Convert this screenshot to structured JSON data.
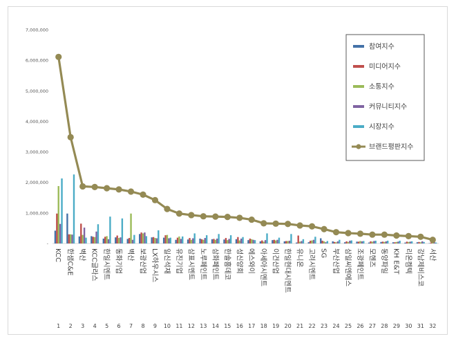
{
  "chart_data": {
    "type": "bar",
    "title": "",
    "xlabel": "",
    "ylabel": "",
    "ylim": [
      0,
      7000000
    ],
    "yticks": [
      0,
      1000000,
      2000000,
      3000000,
      4000000,
      5000000,
      6000000,
      7000000
    ],
    "ytick_labels": [
      "-",
      "1,000,000",
      "2,000,000",
      "3,000,000",
      "4,000,000",
      "5,000,000",
      "6,000,000",
      "7,000,000"
    ],
    "grid": false,
    "legend_position": "top-right",
    "ranks": [
      "1",
      "2",
      "3",
      "4",
      "5",
      "6",
      "7",
      "8",
      "9",
      "10",
      "11",
      "12",
      "13",
      "14",
      "15",
      "16",
      "17",
      "18",
      "19",
      "20",
      "21",
      "22",
      "23",
      "24",
      "25",
      "26",
      "27",
      "28",
      "29",
      "30",
      "31",
      "32"
    ],
    "categories": [
      "KCC",
      "한샘C&E",
      "벽산",
      "KCC글라스",
      "한일시멘트",
      "동화기업",
      "벽산",
      "보광산업",
      "LX하우시스",
      "일신석재",
      "유진기업",
      "삼표시멘트",
      "노루페인트",
      "삼화페인트",
      "한솔홈데코",
      "성신양회",
      "에스와이",
      "아세아시멘트",
      "이건산업",
      "한일현대시멘트",
      "유니온",
      "고려시멘트",
      "SG",
      "부산산업",
      "삼일씨엔에스",
      "조광페인트",
      "모헨즈",
      "동양파일",
      "KH E&T",
      "리온켐텍",
      "강남제비스코",
      "서산"
    ],
    "series": [
      {
        "name": "참여지수",
        "color": "#4472a8",
        "values": [
          420000,
          980000,
          230000,
          240000,
          160000,
          200000,
          150000,
          310000,
          200000,
          190000,
          120000,
          130000,
          160000,
          140000,
          130000,
          140000,
          110000,
          70000,
          110000,
          70000,
          30000,
          40000,
          170000,
          70000,
          40000,
          60000,
          30000,
          50000,
          40000,
          30000,
          40000,
          10000
        ]
      },
      {
        "name": "미디어지수",
        "color": "#c0504d",
        "values": [
          980000,
          300000,
          650000,
          220000,
          220000,
          260000,
          180000,
          360000,
          210000,
          270000,
          190000,
          180000,
          140000,
          150000,
          180000,
          210000,
          160000,
          100000,
          120000,
          80000,
          260000,
          90000,
          90000,
          50000,
          70000,
          60000,
          70000,
          60000,
          40000,
          60000,
          50000,
          30000
        ]
      },
      {
        "name": "소통지수",
        "color": "#9bbb59",
        "values": [
          1880000,
          300000,
          280000,
          210000,
          240000,
          180000,
          980000,
          330000,
          180000,
          280000,
          230000,
          120000,
          120000,
          120000,
          110000,
          100000,
          140000,
          60000,
          100000,
          80000,
          60000,
          100000,
          70000,
          40000,
          50000,
          80000,
          60000,
          50000,
          50000,
          50000,
          40000,
          40000
        ]
      },
      {
        "name": "커뮤니티지수",
        "color": "#8064a2",
        "values": [
          640000,
          290000,
          520000,
          390000,
          140000,
          200000,
          120000,
          360000,
          170000,
          170000,
          150000,
          170000,
          180000,
          160000,
          150000,
          160000,
          120000,
          110000,
          120000,
          90000,
          80000,
          120000,
          40000,
          70000,
          90000,
          70000,
          80000,
          70000,
          60000,
          60000,
          70000,
          40000
        ]
      },
      {
        "name": "시장지수",
        "color": "#4bacc6",
        "values": [
          2130000,
          2260000,
          190000,
          630000,
          880000,
          820000,
          280000,
          240000,
          430000,
          190000,
          230000,
          330000,
          270000,
          310000,
          270000,
          210000,
          110000,
          330000,
          190000,
          310000,
          140000,
          220000,
          80000,
          120000,
          100000,
          80000,
          90000,
          90000,
          90000,
          70000,
          50000,
          30000
        ]
      },
      {
        "name": "브랜드평판지수",
        "color": "#948a54",
        "type": "line",
        "values": [
          6110000,
          3480000,
          1870000,
          1850000,
          1810000,
          1770000,
          1700000,
          1600000,
          1420000,
          1130000,
          980000,
          930000,
          890000,
          880000,
          870000,
          840000,
          780000,
          660000,
          650000,
          640000,
          590000,
          560000,
          470000,
          370000,
          340000,
          320000,
          290000,
          290000,
          260000,
          240000,
          220000,
          120000
        ]
      }
    ]
  }
}
